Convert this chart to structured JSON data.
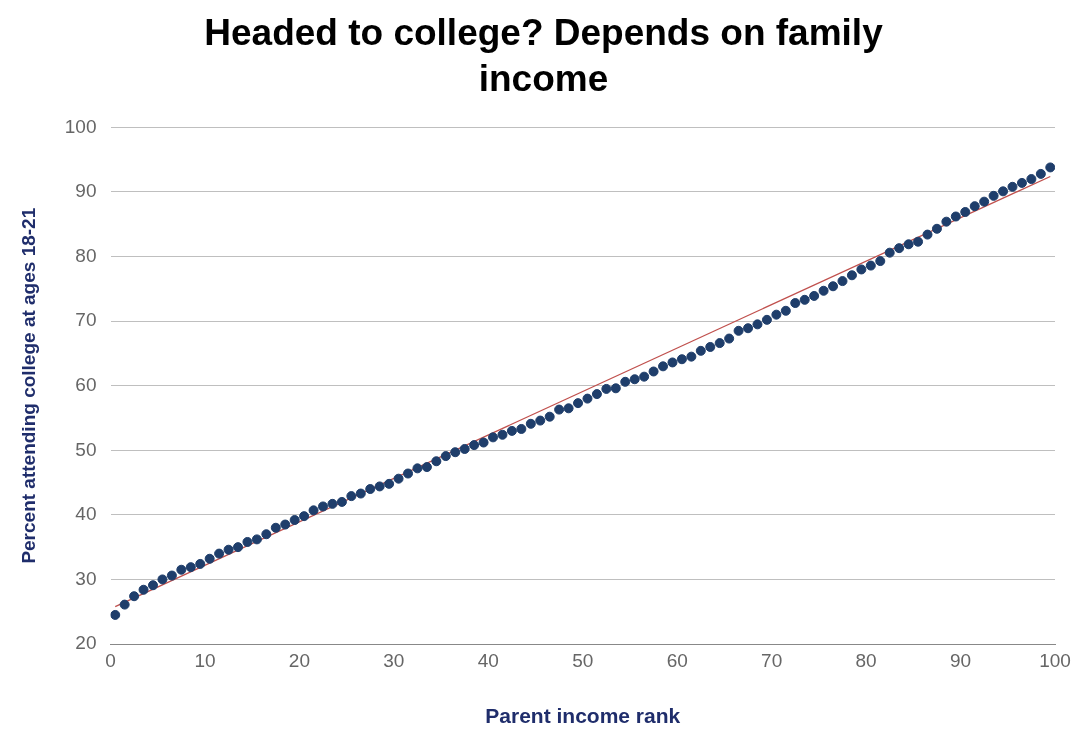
{
  "chart_data": {
    "type": "scatter",
    "title": "Headed to college? Depends on family income",
    "xlabel": "Parent income rank",
    "ylabel": "Percent attending college at ages 18-21",
    "xlim": [
      0,
      100
    ],
    "xticks": [
      0,
      10,
      20,
      30,
      40,
      50,
      60,
      70,
      80,
      90,
      100
    ],
    "ylim": [
      20,
      100
    ],
    "yticks": [
      20,
      30,
      40,
      50,
      60,
      70,
      80,
      90,
      100
    ],
    "grid": "y",
    "legend": false,
    "marker": "circle",
    "series": [
      {
        "color": "#1f3e6b",
        "x": [
          0.5,
          1.5,
          2.5,
          3.5,
          4.5,
          5.5,
          6.5,
          7.5,
          8.5,
          9.5,
          10.5,
          11.5,
          12.5,
          13.5,
          14.5,
          15.5,
          16.5,
          17.5,
          18.5,
          19.5,
          20.5,
          21.5,
          22.5,
          23.5,
          24.5,
          25.5,
          26.5,
          27.5,
          28.5,
          29.5,
          30.5,
          31.5,
          32.5,
          33.5,
          34.5,
          35.5,
          36.5,
          37.5,
          38.5,
          39.5,
          40.5,
          41.5,
          42.5,
          43.5,
          44.5,
          45.5,
          46.5,
          47.5,
          48.5,
          49.5,
          50.5,
          51.5,
          52.5,
          53.5,
          54.5,
          55.5,
          56.5,
          57.5,
          58.5,
          59.5,
          60.5,
          61.5,
          62.5,
          63.5,
          64.5,
          65.5,
          66.5,
          67.5,
          68.5,
          69.5,
          70.5,
          71.5,
          72.5,
          73.5,
          74.5,
          75.5,
          76.5,
          77.5,
          78.5,
          79.5,
          80.5,
          81.5,
          82.5,
          83.5,
          84.5,
          85.5,
          86.5,
          87.5,
          88.5,
          89.5,
          90.5,
          91.5,
          92.5,
          93.5,
          94.5,
          95.5,
          96.5,
          97.5,
          98.5,
          99.5
        ],
        "values": [
          24.5,
          26.1,
          27.4,
          28.4,
          29.1,
          30.0,
          30.6,
          31.5,
          31.9,
          32.4,
          33.2,
          34.0,
          34.6,
          35.0,
          35.8,
          36.2,
          37.0,
          38.0,
          38.5,
          39.2,
          39.8,
          40.7,
          41.3,
          41.7,
          42.0,
          42.9,
          43.3,
          44.0,
          44.4,
          44.8,
          45.6,
          46.4,
          47.2,
          47.4,
          48.3,
          49.1,
          49.7,
          50.2,
          50.8,
          51.2,
          52.0,
          52.4,
          53.0,
          53.3,
          54.1,
          54.6,
          55.2,
          56.3,
          56.5,
          57.3,
          58.0,
          58.7,
          59.5,
          59.6,
          60.6,
          61.0,
          61.4,
          62.2,
          63.0,
          63.6,
          64.1,
          64.5,
          65.4,
          66.0,
          66.6,
          67.3,
          68.5,
          68.9,
          69.5,
          70.2,
          71.0,
          71.6,
          72.8,
          73.3,
          73.9,
          74.7,
          75.4,
          76.2,
          77.1,
          78.0,
          78.6,
          79.3,
          80.6,
          81.3,
          81.9,
          82.3,
          83.4,
          84.3,
          85.4,
          86.2,
          86.9,
          87.8,
          88.5,
          89.4,
          90.1,
          90.8,
          91.4,
          92.0,
          92.8,
          93.8
        ]
      },
      {
        "type": "line",
        "color": "#c0504d",
        "marker": "none",
        "x": [
          0.5,
          99.5
        ],
        "values": [
          25.8,
          92.4
        ]
      }
    ]
  }
}
